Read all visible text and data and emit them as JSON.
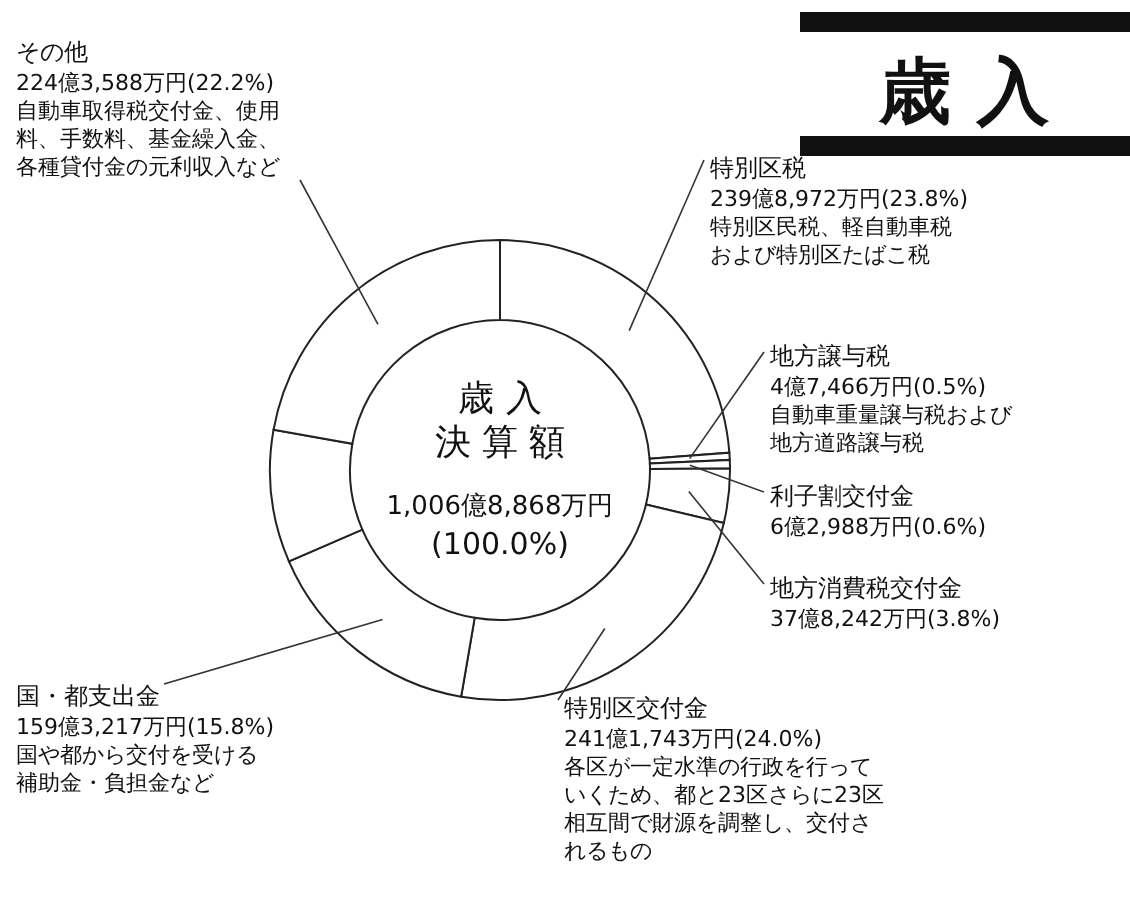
{
  "chart_data": {
    "type": "donut",
    "title": "歳 入",
    "categories": [
      "特別区税",
      "地方譲与税",
      "利子割交付金",
      "地方消費税交付金",
      "特別区交付金",
      "国・都支出金",
      null,
      "その他"
    ],
    "values": [
      23.8,
      0.5,
      0.6,
      3.8,
      24.0,
      15.8,
      9.3,
      22.2
    ],
    "colors": [
      "#ffffff",
      "#ffffff",
      "#ffffff",
      "#ffffff",
      "#ffffff",
      "#ffffff",
      "#ffffff",
      "#ffffff"
    ],
    "value_labels": [
      "239億8,972万円(23.8%)",
      "4億7,466万円(0.5%)",
      "6億2,988万円(0.6%)",
      "37億8,242万円(3.8%)",
      "241億1,743万円(24.0%)",
      "159億3,217万円(15.8%)",
      null,
      "224億3,588万円(22.2%)"
    ],
    "annotations": [
      "歳 入",
      "決 算 額",
      "1,006億8,868万円",
      "(100.0%)",
      "特別区民税、軽自動車税および特別区たばこ税",
      "自動車重量譲与税および地方道路譲与税",
      "各区が一定水準の行政を行っていくため、都と23区さらに23区相互間で財源を調整し、交付されるもの",
      "国や都から交付を受ける補助金・負担金など",
      "自動車取得税交付金、使用料、手数料、基金繰入金、各種貸付金の元利収入など"
    ]
  }
}
